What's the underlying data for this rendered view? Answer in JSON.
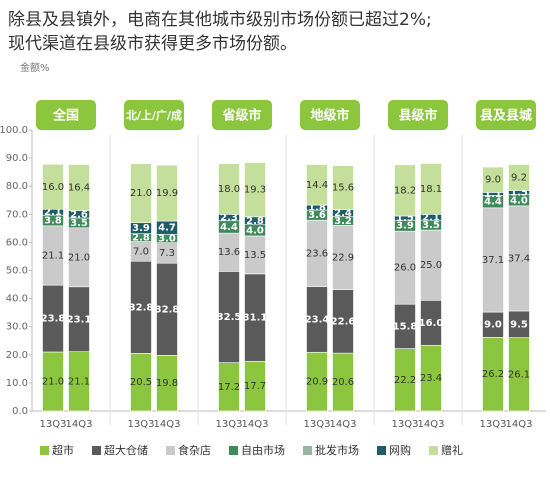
{
  "chart_data": {
    "type": "stacked_bar",
    "title": [
      "除县及县镇外，电商在其他城市级别市场份额已超过2%;",
      "现代渠道在县级市获得更多市场份额。"
    ],
    "y_label": "金额%",
    "groups": [
      "全国",
      "北/上/广/成",
      "省级市",
      "地级市",
      "县级市",
      "县及县城"
    ],
    "categories": [
      "13Q3",
      "14Q3",
      "13Q3",
      "14Q3",
      "13Q3",
      "14Q3",
      "13Q3",
      "14Q3",
      "13Q3",
      "14Q3",
      "13Q3",
      "14Q3"
    ],
    "ylim": [
      0,
      100
    ],
    "yticks": [
      {
        "value": 0,
        "label": "0.0"
      },
      {
        "value": 10,
        "label": "10.0"
      },
      {
        "value": 20,
        "label": "20.0"
      },
      {
        "value": 30,
        "label": "30.0"
      },
      {
        "value": 40,
        "label": "40.0"
      },
      {
        "value": 50,
        "label": "50.0"
      },
      {
        "value": 60,
        "label": "60.0"
      },
      {
        "value": 70,
        "label": "70.0"
      },
      {
        "value": 80,
        "label": "80.0"
      },
      {
        "value": 90,
        "label": "90.0"
      },
      {
        "value": 100,
        "label": "100.0"
      }
    ],
    "series": [
      {
        "name": "超市",
        "color": "#8cc63e",
        "values": [
          21.0,
          21.1,
          20.5,
          19.8,
          17.2,
          17.7,
          20.9,
          20.6,
          22.2,
          23.4,
          26.2,
          26.1
        ],
        "value_labels": [
          "21.0",
          "21.1",
          "20.5",
          "19.8",
          "17.2",
          "17.7",
          "20.9",
          "20.6",
          "22.2",
          "23.4",
          "26.2",
          "26.1"
        ]
      },
      {
        "name": "超大仓储",
        "color": "#5a5a5a",
        "values": [
          23.8,
          23.1,
          32.8,
          32.8,
          32.5,
          31.1,
          23.4,
          22.6,
          15.8,
          16.0,
          9.0,
          9.5
        ],
        "value_labels": [
          "23.8",
          "23.1",
          "32.8",
          "32.8",
          "32.5",
          "31.1",
          "23.4",
          "22.6",
          "15.8",
          "16.0",
          "9.0",
          "9.5"
        ]
      },
      {
        "name": "食杂店",
        "color": "#cacaca",
        "values": [
          21.1,
          21.0,
          7.0,
          7.3,
          13.6,
          13.5,
          23.6,
          22.9,
          26.0,
          25.0,
          37.1,
          37.4
        ],
        "value_labels": [
          "21.1",
          "21.0",
          "7.0",
          "7.3",
          "13.6",
          "13.5",
          "23.6",
          "22.9",
          "26.0",
          "25.0",
          "37.1",
          "37.4"
        ]
      },
      {
        "name": "自由市场",
        "color": "#3f8a5a",
        "values": [
          3.8,
          3.5,
          2.8,
          3.0,
          4.4,
          4.0,
          3.6,
          3.2,
          3.9,
          3.5,
          4.4,
          4.0
        ],
        "value_labels": [
          "3.8",
          "3.5",
          "2.8",
          "3.0",
          "4.4",
          "4.0",
          "3.6",
          "3.2",
          "3.9",
          "3.5",
          "4.4",
          "4.0"
        ]
      },
      {
        "name": "批发市场",
        "color": "#9bb5a5",
        "values": [
          null,
          null,
          null,
          null,
          null,
          null,
          null,
          null,
          null,
          null,
          null,
          null
        ]
      },
      {
        "name": "网购",
        "color": "#1f5b68",
        "values": [
          2.1,
          2.6,
          3.9,
          4.7,
          2.3,
          2.8,
          1.8,
          2.4,
          1.5,
          2.1,
          1.1,
          1.5
        ],
        "value_labels": [
          "2.1",
          "2.6",
          "3.9",
          "4.7",
          "2.3",
          "2.8",
          "1.8",
          "2.4",
          "1.5",
          "2.1",
          "1.1",
          "1.5"
        ]
      },
      {
        "name": "赠礼",
        "color": "#c3df9b",
        "values": [
          16.0,
          16.4,
          21.0,
          19.9,
          18.0,
          19.3,
          14.4,
          15.6,
          18.2,
          18.1,
          9.0,
          9.2
        ],
        "value_labels": [
          "16.0",
          "16.4",
          "21.0",
          "19.9",
          "18.0",
          "19.3",
          "14.4",
          "15.6",
          "18.2",
          "18.1",
          "9.0",
          "9.2"
        ]
      }
    ]
  }
}
